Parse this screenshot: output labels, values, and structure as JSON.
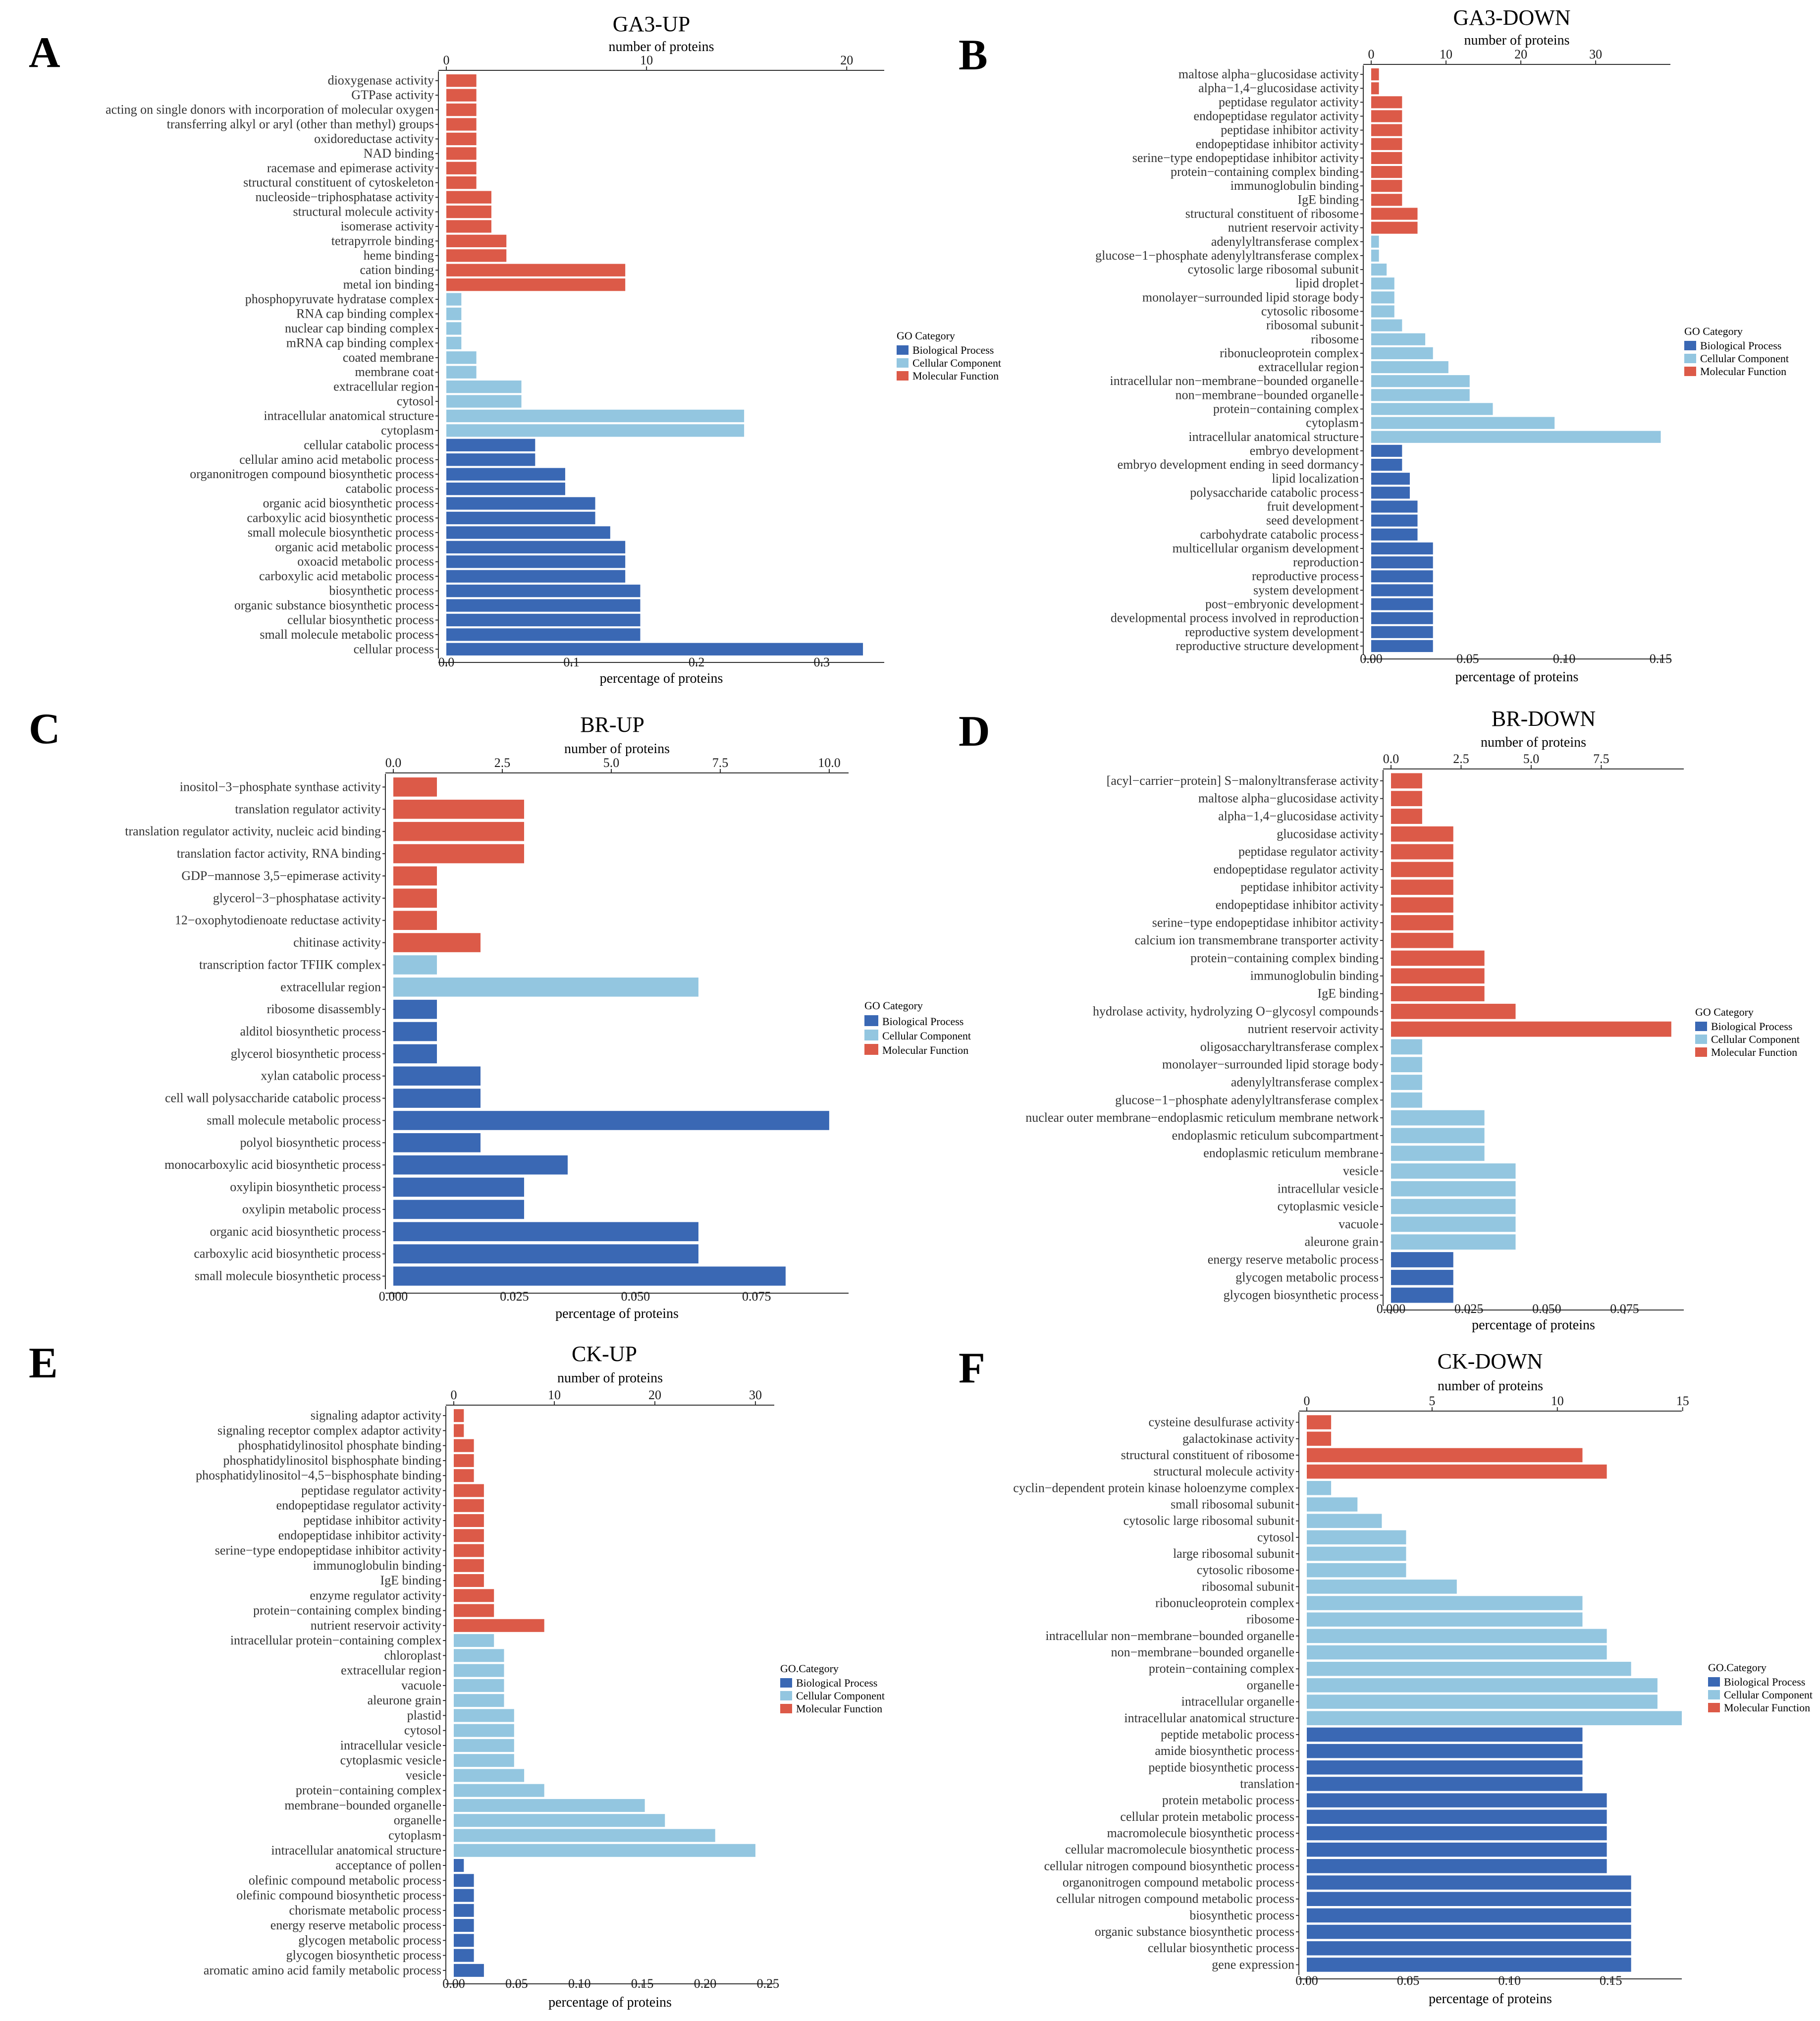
{
  "colors": {
    "biological_process": "#3A68B4",
    "cellular_component": "#93C6E0",
    "molecular_function": "#DC5A48"
  },
  "legend": {
    "title_a": "GO Category",
    "title_b": "GO.Category",
    "items": [
      "Biological Process",
      "Cellular Component",
      "Molecular Function"
    ]
  },
  "chart_data": [
    {
      "panel": "A",
      "type": "bar",
      "orientation": "horizontal",
      "title": "GA3-UP",
      "xlabel": "percentage of proteins",
      "x2label": "number of proteins",
      "xlim": [
        0,
        0.35
      ],
      "xticks": [
        0.0,
        0.1,
        0.2,
        0.3
      ],
      "xtick_labels": [
        "0.0",
        "0.1",
        "0.2",
        "0.3"
      ],
      "x2ticks": [
        0,
        10,
        20
      ],
      "x2tick_labels": [
        "0",
        "10",
        "20"
      ],
      "x2_per_x": 62.5,
      "legend_title": "GO Category",
      "categories": [
        "dioxygenase activity",
        "GTPase activity",
        "acting on single donors with incorporation of molecular oxygen",
        "transferring alkyl or aryl (other than methyl) groups",
        "oxidoreductase activity",
        "NAD binding",
        "racemase and epimerase activity",
        "structural constituent of cytoskeleton",
        "nucleoside−triphosphatase activity",
        "structural molecule activity",
        "isomerase activity",
        "tetrapyrrole binding",
        "heme binding",
        "cation binding",
        "metal ion binding",
        "phosphopyruvate hydratase complex",
        "RNA cap binding complex",
        "nuclear cap binding complex",
        "mRNA cap binding complex",
        "coated membrane",
        "membrane coat",
        "extracellular region",
        "cytosol",
        "intracellular anatomical structure",
        "cytoplasm",
        "cellular catabolic process",
        "cellular amino acid metabolic process",
        "organonitrogen compound biosynthetic process",
        "catabolic process",
        "organic acid biosynthetic process",
        "carboxylic acid biosynthetic process",
        "small molecule biosynthetic process",
        "organic acid metabolic process",
        "oxoacid metabolic process",
        "carboxylic acid metabolic process",
        "biosynthetic process",
        "organic substance biosynthetic process",
        "cellular biosynthetic process",
        "small molecule metabolic process",
        "cellular process"
      ],
      "values": [
        0.024,
        0.024,
        0.024,
        0.024,
        0.024,
        0.024,
        0.024,
        0.024,
        0.036,
        0.036,
        0.036,
        0.048,
        0.048,
        0.143,
        0.143,
        0.012,
        0.012,
        0.012,
        0.012,
        0.024,
        0.024,
        0.06,
        0.06,
        0.238,
        0.238,
        0.071,
        0.071,
        0.095,
        0.095,
        0.119,
        0.119,
        0.131,
        0.143,
        0.143,
        0.143,
        0.155,
        0.155,
        0.155,
        0.155,
        0.333
      ],
      "groups": [
        "MF",
        "MF",
        "MF",
        "MF",
        "MF",
        "MF",
        "MF",
        "MF",
        "MF",
        "MF",
        "MF",
        "MF",
        "MF",
        "MF",
        "MF",
        "CC",
        "CC",
        "CC",
        "CC",
        "CC",
        "CC",
        "CC",
        "CC",
        "CC",
        "CC",
        "BP",
        "BP",
        "BP",
        "BP",
        "BP",
        "BP",
        "BP",
        "BP",
        "BP",
        "BP",
        "BP",
        "BP",
        "BP",
        "BP",
        "BP"
      ]
    },
    {
      "panel": "B",
      "type": "bar",
      "orientation": "horizontal",
      "title": "GA3-DOWN",
      "xlabel": "percentage of proteins",
      "x2label": "number of proteins",
      "xlim": [
        0,
        0.155
      ],
      "xticks": [
        0,
        0.05,
        0.1,
        0.15
      ],
      "xtick_labels": [
        "0.00",
        "0.05",
        "0.10",
        "0.15"
      ],
      "x2ticks": [
        0,
        10,
        20,
        30
      ],
      "x2tick_labels": [
        "0",
        "10",
        "20",
        "30"
      ],
      "x2_per_x": 258,
      "legend_title": "GO Category",
      "categories": [
        "maltose alpha−glucosidase activity",
        "alpha−1,4−glucosidase activity",
        "peptidase regulator activity",
        "endopeptidase regulator activity",
        "peptidase inhibitor activity",
        "endopeptidase inhibitor activity",
        "serine−type endopeptidase inhibitor activity",
        "protein−containing complex binding",
        "immunoglobulin binding",
        "IgE binding",
        "structural constituent of ribosome",
        "nutrient reservoir activity",
        "adenylyltransferase complex",
        "glucose−1−phosphate adenylyltransferase complex",
        "cytosolic large ribosomal subunit",
        "lipid droplet",
        "monolayer−surrounded lipid storage body",
        "cytosolic ribosome",
        "ribosomal subunit",
        "ribosome",
        "ribonucleoprotein complex",
        "extracellular region",
        "intracellular non−membrane−bounded organelle",
        "non−membrane−bounded organelle",
        "protein−containing complex",
        "cytoplasm",
        "intracellular anatomical structure",
        "embryo development",
        "embryo development ending in seed dormancy",
        "lipid localization",
        "polysaccharide catabolic process",
        "fruit development",
        "seed development",
        "carbohydrate catabolic process",
        "multicellular organism development",
        "reproduction",
        "reproductive process",
        "system development",
        "post−embryonic development",
        "developmental process involved in reproduction",
        "reproductive system development",
        "reproductive structure development"
      ],
      "values": [
        0.004,
        0.004,
        0.016,
        0.016,
        0.016,
        0.016,
        0.016,
        0.016,
        0.016,
        0.016,
        0.024,
        0.024,
        0.004,
        0.004,
        0.008,
        0.012,
        0.012,
        0.012,
        0.016,
        0.028,
        0.032,
        0.04,
        0.051,
        0.051,
        0.063,
        0.095,
        0.15,
        0.016,
        0.016,
        0.02,
        0.02,
        0.024,
        0.024,
        0.024,
        0.032,
        0.032,
        0.032,
        0.032,
        0.032,
        0.032,
        0.032,
        0.032
      ],
      "groups": [
        "MF",
        "MF",
        "MF",
        "MF",
        "MF",
        "MF",
        "MF",
        "MF",
        "MF",
        "MF",
        "MF",
        "MF",
        "CC",
        "CC",
        "CC",
        "CC",
        "CC",
        "CC",
        "CC",
        "CC",
        "CC",
        "CC",
        "CC",
        "CC",
        "CC",
        "CC",
        "CC",
        "BP",
        "BP",
        "BP",
        "BP",
        "BP",
        "BP",
        "BP",
        "BP",
        "BP",
        "BP",
        "BP",
        "BP",
        "BP",
        "BP",
        "BP"
      ]
    },
    {
      "panel": "C",
      "type": "bar",
      "orientation": "horizontal",
      "title": "BR-UP",
      "xlabel": "percentage of proteins",
      "x2label": "number of proteins",
      "xlim": [
        0,
        0.094
      ],
      "xticks": [
        0,
        0.025,
        0.05,
        0.075
      ],
      "xtick_labels": [
        "0.000",
        "0.025",
        "0.050",
        "0.075"
      ],
      "x2ticks": [
        0,
        2.5,
        5,
        7.5,
        10
      ],
      "x2tick_labels": [
        "0.0",
        "2.5",
        "5.0",
        "7.5",
        "10.0"
      ],
      "x2_per_x": 111.1,
      "legend_title": "GO Category",
      "categories": [
        "inositol−3−phosphate synthase activity",
        "translation regulator activity",
        "translation regulator activity, nucleic acid binding",
        "translation factor activity, RNA binding",
        "GDP−mannose 3,5−epimerase activity",
        "glycerol−3−phosphatase activity",
        "12−oxophytodienoate reductase activity",
        "chitinase activity",
        "transcription factor TFIIK complex",
        "extracellular region",
        "ribosome disassembly",
        "alditol biosynthetic process",
        "glycerol biosynthetic process",
        "xylan catabolic process",
        "cell wall polysaccharide catabolic process",
        "small molecule metabolic process",
        "polyol biosynthetic process",
        "monocarboxylic acid biosynthetic process",
        "oxylipin biosynthetic process",
        "oxylipin metabolic process",
        "organic acid biosynthetic process",
        "carboxylic acid biosynthetic process",
        "small molecule biosynthetic process"
      ],
      "values": [
        0.009,
        0.027,
        0.027,
        0.027,
        0.009,
        0.009,
        0.009,
        0.018,
        0.009,
        0.063,
        0.009,
        0.009,
        0.009,
        0.018,
        0.018,
        0.09,
        0.018,
        0.036,
        0.027,
        0.027,
        0.063,
        0.063,
        0.081
      ],
      "groups": [
        "MF",
        "MF",
        "MF",
        "MF",
        "MF",
        "MF",
        "MF",
        "MF",
        "CC",
        "CC",
        "BP",
        "BP",
        "BP",
        "BP",
        "BP",
        "BP",
        "BP",
        "BP",
        "BP",
        "BP",
        "BP",
        "BP",
        "BP"
      ]
    },
    {
      "panel": "D",
      "type": "bar",
      "orientation": "horizontal",
      "title": "BR-DOWN",
      "xlabel": "percentage of proteins",
      "x2label": "number of proteins",
      "xlim": [
        0,
        0.094
      ],
      "xticks": [
        0,
        0.025,
        0.05,
        0.075
      ],
      "xtick_labels": [
        "0.000",
        "0.025",
        "0.050",
        "0.075"
      ],
      "x2ticks": [
        0,
        2.5,
        5,
        7.5
      ],
      "x2tick_labels": [
        "0.0",
        "2.5",
        "5.0",
        "7.5"
      ],
      "x2_per_x": 111.1,
      "legend_title": "GO Category",
      "categories": [
        "[acyl−carrier−protein] S−malonyltransferase activity",
        "maltose alpha−glucosidase activity",
        "alpha−1,4−glucosidase activity",
        "glucosidase activity",
        "peptidase regulator activity",
        "endopeptidase regulator activity",
        "peptidase inhibitor activity",
        "endopeptidase inhibitor activity",
        "serine−type endopeptidase inhibitor activity",
        "calcium ion transmembrane transporter activity",
        "protein−containing complex binding",
        "immunoglobulin binding",
        "IgE binding",
        "hydrolase activity, hydrolyzing O−glycosyl compounds",
        "nutrient reservoir activity",
        "oligosaccharyltransferase complex",
        "monolayer−surrounded lipid storage body",
        "adenylyltransferase complex",
        "glucose−1−phosphate adenylyltransferase complex",
        "nuclear outer membrane−endoplasmic reticulum membrane network",
        "endoplasmic reticulum subcompartment",
        "endoplasmic reticulum membrane",
        "vesicle",
        "intracellular vesicle",
        "cytoplasmic vesicle",
        "vacuole",
        "aleurone grain",
        "energy reserve metabolic process",
        "glycogen metabolic process",
        "glycogen biosynthetic process"
      ],
      "values": [
        0.01,
        0.01,
        0.01,
        0.02,
        0.02,
        0.02,
        0.02,
        0.02,
        0.02,
        0.02,
        0.03,
        0.03,
        0.03,
        0.04,
        0.09,
        0.01,
        0.01,
        0.01,
        0.01,
        0.03,
        0.03,
        0.03,
        0.04,
        0.04,
        0.04,
        0.04,
        0.04,
        0.02,
        0.02,
        0.02
      ],
      "groups": [
        "MF",
        "MF",
        "MF",
        "MF",
        "MF",
        "MF",
        "MF",
        "MF",
        "MF",
        "MF",
        "MF",
        "MF",
        "MF",
        "MF",
        "MF",
        "CC",
        "CC",
        "CC",
        "CC",
        "CC",
        "CC",
        "CC",
        "CC",
        "CC",
        "CC",
        "CC",
        "CC",
        "BP",
        "BP",
        "BP"
      ]
    },
    {
      "panel": "E",
      "type": "bar",
      "orientation": "horizontal",
      "title": "CK-UP",
      "xlabel": "percentage of proteins",
      "x2label": "number of proteins",
      "xlim": [
        0,
        0.255
      ],
      "xticks": [
        0,
        0.05,
        0.1,
        0.15,
        0.2,
        0.25
      ],
      "xtick_labels": [
        "0.00",
        "0.05",
        "0.10",
        "0.15",
        "0.20",
        "0.25"
      ],
      "x2ticks": [
        0,
        10,
        20,
        30
      ],
      "x2tick_labels": [
        "0",
        "10",
        "20",
        "30"
      ],
      "x2_per_x": 125,
      "legend_title": "GO.Category",
      "categories": [
        "signaling adaptor activity",
        "signaling receptor complex adaptor activity",
        "phosphatidylinositol phosphate binding",
        "phosphatidylinositol bisphosphate binding",
        "phosphatidylinositol−4,5−bisphosphate binding",
        "peptidase regulator activity",
        "endopeptidase regulator activity",
        "peptidase inhibitor activity",
        "endopeptidase inhibitor activity",
        "serine−type endopeptidase inhibitor activity",
        "immunoglobulin binding",
        "IgE binding",
        "enzyme regulator activity",
        "protein−containing complex binding",
        "nutrient reservoir activity",
        "intracellular protein−containing complex",
        "chloroplast",
        "extracellular region",
        "vacuole",
        "aleurone grain",
        "plastid",
        "cytosol",
        "intracellular vesicle",
        "cytoplasmic vesicle",
        "vesicle",
        "protein−containing complex",
        "membrane−bounded organelle",
        "organelle",
        "cytoplasm",
        "intracellular anatomical structure",
        "acceptance of pollen",
        "olefinic compound metabolic process",
        "olefinic compound biosynthetic process",
        "chorismate metabolic process",
        "energy reserve metabolic process",
        "glycogen metabolic process",
        "glycogen biosynthetic process",
        "aromatic amino acid family metabolic process"
      ],
      "values": [
        0.008,
        0.008,
        0.016,
        0.016,
        0.016,
        0.024,
        0.024,
        0.024,
        0.024,
        0.024,
        0.024,
        0.024,
        0.032,
        0.032,
        0.072,
        0.032,
        0.04,
        0.04,
        0.04,
        0.04,
        0.048,
        0.048,
        0.048,
        0.048,
        0.056,
        0.072,
        0.152,
        0.168,
        0.208,
        0.24,
        0.008,
        0.016,
        0.016,
        0.016,
        0.016,
        0.016,
        0.016,
        0.024
      ],
      "groups": [
        "MF",
        "MF",
        "MF",
        "MF",
        "MF",
        "MF",
        "MF",
        "MF",
        "MF",
        "MF",
        "MF",
        "MF",
        "MF",
        "MF",
        "MF",
        "CC",
        "CC",
        "CC",
        "CC",
        "CC",
        "CC",
        "CC",
        "CC",
        "CC",
        "CC",
        "CC",
        "CC",
        "CC",
        "CC",
        "CC",
        "BP",
        "BP",
        "BP",
        "BP",
        "BP",
        "BP",
        "BP",
        "BP"
      ]
    },
    {
      "panel": "F",
      "type": "bar",
      "orientation": "horizontal",
      "title": "CK-DOWN",
      "xlabel": "percentage of proteins",
      "x2label": "number of proteins",
      "xlim": [
        0,
        0.185
      ],
      "xticks": [
        0,
        0.05,
        0.1,
        0.15
      ],
      "xtick_labels": [
        "0.00",
        "0.05",
        "0.10",
        "0.15"
      ],
      "x2ticks": [
        0,
        5,
        10,
        15
      ],
      "x2tick_labels": [
        "0",
        "5",
        "10",
        "15"
      ],
      "x2_per_x": 80.9,
      "legend_title": "GO.Category",
      "categories": [
        "cysteine desulfurase activity",
        "galactokinase activity",
        "structural constituent of ribosome",
        "structural molecule activity",
        "cyclin−dependent protein kinase holoenzyme complex",
        "small ribosomal subunit",
        "cytosolic large ribosomal subunit",
        "cytosol",
        "large ribosomal subunit",
        "cytosolic ribosome",
        "ribosomal subunit",
        "ribonucleoprotein complex",
        "ribosome",
        "intracellular non−membrane−bounded organelle",
        "non−membrane−bounded organelle",
        "protein−containing complex",
        "organelle",
        "intracellular organelle",
        "intracellular anatomical structure",
        "peptide metabolic process",
        "amide biosynthetic process",
        "peptide biosynthetic process",
        "translation",
        "protein metabolic process",
        "cellular protein metabolic process",
        "macromolecule biosynthetic process",
        "cellular macromolecule biosynthetic process",
        "cellular nitrogen compound biosynthetic process",
        "organonitrogen compound metabolic process",
        "cellular nitrogen compound metabolic process",
        "biosynthetic process",
        "organic substance biosynthetic process",
        "cellular biosynthetic process",
        "gene expression"
      ],
      "values": [
        0.012,
        0.012,
        0.136,
        0.148,
        0.012,
        0.025,
        0.037,
        0.049,
        0.049,
        0.049,
        0.074,
        0.136,
        0.136,
        0.148,
        0.148,
        0.16,
        0.173,
        0.173,
        0.185,
        0.136,
        0.136,
        0.136,
        0.136,
        0.148,
        0.148,
        0.148,
        0.148,
        0.148,
        0.16,
        0.16,
        0.16,
        0.16,
        0.16,
        0.16
      ],
      "groups": [
        "MF",
        "MF",
        "MF",
        "MF",
        "CC",
        "CC",
        "CC",
        "CC",
        "CC",
        "CC",
        "CC",
        "CC",
        "CC",
        "CC",
        "CC",
        "CC",
        "CC",
        "CC",
        "CC",
        "BP",
        "BP",
        "BP",
        "BP",
        "BP",
        "BP",
        "BP",
        "BP",
        "BP",
        "BP",
        "BP",
        "BP",
        "BP",
        "BP",
        "BP"
      ]
    }
  ]
}
